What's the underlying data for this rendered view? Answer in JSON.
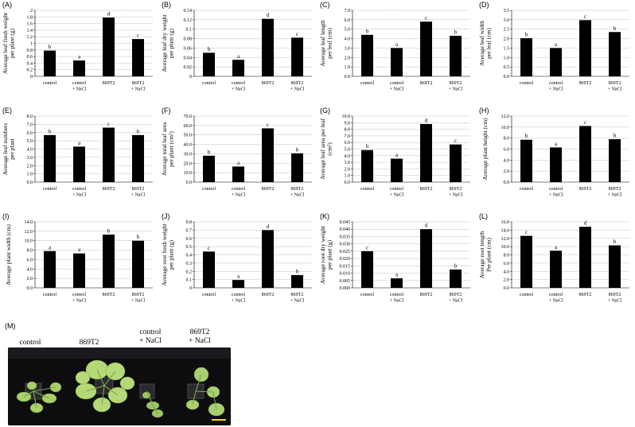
{
  "figure": {
    "charts": [
      {
        "id": "A",
        "panel_label": "(A)",
        "ylabel_lines": [
          "Average leaf fresh weight",
          "per plant (g)"
        ],
        "ylim": [
          0,
          2.0
        ],
        "ticks": [
          "0",
          "0.2",
          "0.4",
          "0.6",
          "0.8",
          "1",
          "1.2",
          "1.4",
          "1.6",
          "1.8",
          "2"
        ]
      },
      {
        "id": "B",
        "panel_label": "(B)",
        "ylabel_lines": [
          "Average leaf dry weight",
          "per plant (g)"
        ],
        "ylim": [
          0,
          0.14
        ],
        "ticks": [
          "0",
          "0.02",
          "0.04",
          "0.06",
          "0.08",
          "0.1",
          "0.12",
          "0.14"
        ]
      },
      {
        "id": "C",
        "panel_label": "(C)",
        "ylabel_lines": [
          "Average leaf length",
          "per leaf (cm)"
        ],
        "ylim": [
          0,
          7.0
        ],
        "ticks": [
          "0.0",
          "1.0",
          "2.0",
          "3.0",
          "4.0",
          "5.0",
          "6.0",
          "7.0"
        ]
      },
      {
        "id": "D",
        "panel_label": "(D)",
        "ylabel_lines": [
          "Average  leaf width",
          "per leaf (cm)"
        ],
        "ylim": [
          0,
          3.5
        ],
        "ticks": [
          "0.0",
          "0.5",
          "1.0",
          "1.5",
          "2.0",
          "2.5",
          "3.0",
          "3.5"
        ]
      },
      {
        "id": "E",
        "panel_label": "(E)",
        "ylabel_lines": [
          "Average leaf numbers",
          "per plant"
        ],
        "ylim": [
          0,
          8.0
        ],
        "ticks": [
          "0.0",
          "1.0",
          "2.0",
          "3.0",
          "4.0",
          "5.0",
          "6.0",
          "7.0",
          "8.0"
        ]
      },
      {
        "id": "F",
        "panel_label": "(F)",
        "ylabel_lines": [
          "Average total leaf area",
          "per plant (cm²)"
        ],
        "ylim": [
          0,
          70.0
        ],
        "ticks": [
          "0.0",
          "10.0",
          "20.0",
          "30.0",
          "40.0",
          "50.0",
          "60.0",
          "70.0"
        ]
      },
      {
        "id": "G",
        "panel_label": "(G)",
        "ylabel_lines": [
          "Average leaf area per leaf",
          "(cm²)"
        ],
        "ylim": [
          0,
          10.0
        ],
        "ticks": [
          "0.0",
          "1.0",
          "2.0",
          "3.0",
          "4.0",
          "5.0",
          "6.0",
          "7.0",
          "8.0",
          "9.0",
          "10.0"
        ]
      },
      {
        "id": "H",
        "panel_label": "(H)",
        "ylabel_lines": [
          "Average plant height (cm)"
        ],
        "ylim": [
          0,
          12.0
        ],
        "ticks": [
          "0.0",
          "2.0",
          "4.0",
          "6.0",
          "8.0",
          "10.0",
          "12.0"
        ]
      },
      {
        "id": "I",
        "panel_label": "(I)",
        "ylabel_lines": [
          "Average plant width (cm)"
        ],
        "ylim": [
          0,
          14.0
        ],
        "ticks": [
          "0.0",
          "2.0",
          "4.0",
          "6.0",
          "8.0",
          "10.0",
          "12.0",
          "14.0"
        ]
      },
      {
        "id": "J",
        "panel_label": "(J)",
        "ylabel_lines": [
          "Average root fresh weight",
          "per plant (g)"
        ],
        "ylim": [
          0,
          0.8
        ],
        "ticks": [
          "0",
          "0.1",
          "0.2",
          "0.3",
          "0.4",
          "0.5",
          "0.6",
          "0.7",
          "0.8"
        ]
      },
      {
        "id": "K",
        "panel_label": "(K)",
        "ylabel_lines": [
          "Average root dry weight",
          "per plant (g)"
        ],
        "ylim": [
          0,
          0.045
        ],
        "ticks": [
          "0.000",
          "0.005",
          "0.010",
          "0.015",
          "0.020",
          "0.025",
          "0.030",
          "0.035",
          "0.040",
          "0.045"
        ]
      },
      {
        "id": "L",
        "panel_label": "(L)",
        "ylabel_lines": [
          "Average root length",
          "Per plant (cm)"
        ],
        "ylim": [
          0,
          16.0
        ],
        "ticks": [
          "0.0",
          "2.0",
          "4.0",
          "6.0",
          "8.0",
          "10.0",
          "12.0",
          "14.0",
          "16.0"
        ]
      }
    ],
    "photo": {
      "panel_label": "(M)",
      "conditions": [
        "control",
        "869T2",
        "control\n+ NaCl",
        "869T2\n+ NaCl"
      ]
    }
  },
  "chart_data": [
    {
      "type": "bar",
      "categories": [
        "control",
        "control\n+ NaCl",
        "869T2",
        "869T2\n+ NaCl"
      ],
      "values": [
        0.78,
        0.48,
        1.78,
        1.13
      ],
      "letters": [
        "b",
        "a",
        "d",
        "c"
      ],
      "title": "",
      "xlabel": "",
      "ylabel": "Average leaf fresh weight per plant (g)",
      "ylim": [
        0,
        2.0
      ],
      "grid": true
    },
    {
      "type": "bar",
      "categories": [
        "control",
        "control\n+ NaCl",
        "869T2",
        "869T2\n+ NaCl"
      ],
      "values": [
        0.05,
        0.035,
        0.122,
        0.082
      ],
      "letters": [
        "b",
        "a",
        "d",
        "c"
      ],
      "title": "",
      "xlabel": "",
      "ylabel": "Average leaf dry weight per plant (g)",
      "ylim": [
        0,
        0.14
      ],
      "grid": true
    },
    {
      "type": "bar",
      "categories": [
        "control",
        "control\n+ NaCl",
        "869T2",
        "869T2\n+ NaCl"
      ],
      "values": [
        4.4,
        3.0,
        5.8,
        4.3
      ],
      "letters": [
        "b",
        "a",
        "c",
        "b"
      ],
      "title": "",
      "xlabel": "",
      "ylabel": "Average leaf length per leaf (cm)",
      "ylim": [
        0,
        7.0
      ],
      "grid": true
    },
    {
      "type": "bar",
      "categories": [
        "control",
        "control\n+ NaCl",
        "869T2",
        "869T2\n+ NaCl"
      ],
      "values": [
        2.02,
        1.5,
        2.98,
        2.35
      ],
      "letters": [
        "b",
        "a",
        "c",
        "b"
      ],
      "title": "",
      "xlabel": "",
      "ylabel": "Average leaf width per leaf (cm)",
      "ylim": [
        0,
        3.5
      ],
      "grid": true
    },
    {
      "type": "bar",
      "categories": [
        "control",
        "control\n+ NaCl",
        "869T2",
        "869T2\n+ NaCl"
      ],
      "values": [
        5.7,
        4.3,
        6.6,
        5.7
      ],
      "letters": [
        "b",
        "a",
        "c",
        "b"
      ],
      "title": "",
      "xlabel": "",
      "ylabel": "Average leaf numbers per plant",
      "ylim": [
        0,
        8.0
      ],
      "grid": true
    },
    {
      "type": "bar",
      "categories": [
        "control",
        "control\n+ NaCl",
        "869T2",
        "869T2\n+ NaCl"
      ],
      "values": [
        28.0,
        16.5,
        57.0,
        30.5
      ],
      "letters": [
        "b",
        "a",
        "c",
        "b"
      ],
      "title": "",
      "xlabel": "",
      "ylabel": "Average total leaf area per plant (cm²)",
      "ylim": [
        0,
        70.0
      ],
      "grid": true
    },
    {
      "type": "bar",
      "categories": [
        "control",
        "control\n+ NaCl",
        "869T2",
        "869T2\n+ NaCl"
      ],
      "values": [
        4.85,
        3.55,
        8.8,
        5.7
      ],
      "letters": [
        "b",
        "a",
        "d",
        "c"
      ],
      "title": "",
      "xlabel": "",
      "ylabel": "Average leaf area per leaf (cm²)",
      "ylim": [
        0,
        10.0
      ],
      "grid": true
    },
    {
      "type": "bar",
      "categories": [
        "control",
        "control\n+ NaCl",
        "869T2",
        "869T2\n+ NaCl"
      ],
      "values": [
        7.7,
        6.3,
        10.2,
        7.8
      ],
      "letters": [
        "b",
        "a",
        "c",
        "b"
      ],
      "title": "",
      "xlabel": "",
      "ylabel": "Average plant height (cm)",
      "ylim": [
        0,
        12.0
      ],
      "grid": true
    },
    {
      "type": "bar",
      "categories": [
        "control",
        "control\n+ NaCl",
        "869T2",
        "869T2\n+ NaCl"
      ],
      "values": [
        7.8,
        7.3,
        11.3,
        10.0
      ],
      "letters": [
        "a",
        "a",
        "b",
        "b"
      ],
      "title": "",
      "xlabel": "",
      "ylabel": "Average plant width (cm)",
      "ylim": [
        0,
        14.0
      ],
      "grid": true
    },
    {
      "type": "bar",
      "categories": [
        "control",
        "control\n+ NaCl",
        "869T2",
        "869T2\n+ NaCl"
      ],
      "values": [
        0.44,
        0.095,
        0.7,
        0.155
      ],
      "letters": [
        "c",
        "a",
        "d",
        "b"
      ],
      "title": "",
      "xlabel": "",
      "ylabel": "Average root fresh weight per plant (g)",
      "ylim": [
        0,
        0.8
      ],
      "grid": true
    },
    {
      "type": "bar",
      "categories": [
        "control",
        "control\n+ NaCl",
        "869T2",
        "869T2\n+ NaCl"
      ],
      "values": [
        0.025,
        0.0065,
        0.04,
        0.0125
      ],
      "letters": [
        "c",
        "a",
        "d",
        "b"
      ],
      "title": "",
      "xlabel": "",
      "ylabel": "Average root dry weight per plant (g)",
      "ylim": [
        0,
        0.045
      ],
      "grid": true
    },
    {
      "type": "bar",
      "categories": [
        "control",
        "control\n+ NaCl",
        "869T2",
        "869T2\n+ NaCl"
      ],
      "values": [
        12.6,
        9.0,
        14.8,
        10.3
      ],
      "letters": [
        "c",
        "a",
        "d",
        "b"
      ],
      "title": "",
      "xlabel": "",
      "ylabel": "Average root length Per plant (cm)",
      "ylim": [
        0,
        16.0
      ],
      "grid": true
    }
  ]
}
